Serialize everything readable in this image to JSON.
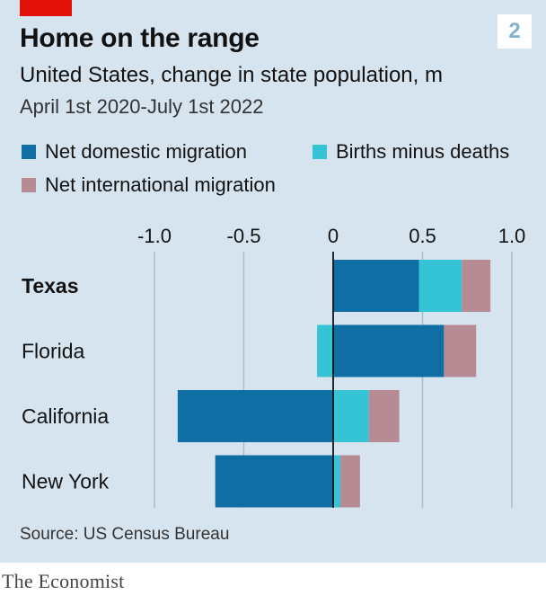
{
  "title": "Home on the range",
  "subtitle": "United States, change in state population, m",
  "period": "April 1st 2020-July 1st 2022",
  "badge": "2",
  "source": "Source: US Census Bureau",
  "brand": "The Economist",
  "colors": {
    "domestic": "#0f6ea3",
    "births": "#35c3d6",
    "international": "#b68b94",
    "accent": "#e3120b",
    "background": "#d6e4ef"
  },
  "legend": [
    {
      "label": "Net domestic migration",
      "color": "#0f6ea3"
    },
    {
      "label": "Births minus deaths",
      "color": "#35c3d6"
    },
    {
      "label": "Net international migration",
      "color": "#b68b94"
    }
  ],
  "chart_data": {
    "type": "bar",
    "orientation": "horizontal",
    "stacked": true,
    "categories": [
      "Texas",
      "Florida",
      "California",
      "New York"
    ],
    "highlight": "Texas",
    "series": [
      {
        "name": "Net domestic migration",
        "values": [
          0.48,
          0.62,
          -0.87,
          -0.66
        ]
      },
      {
        "name": "Births minus deaths",
        "values": [
          0.24,
          -0.09,
          0.2,
          0.04
        ]
      },
      {
        "name": "Net international migration",
        "values": [
          0.16,
          0.18,
          0.17,
          0.11
        ]
      }
    ],
    "xticks": [
      "-1.0",
      "-0.5",
      "0",
      "0.5",
      "1.0"
    ],
    "xlim": [
      -1.0,
      1.0
    ],
    "grid": true,
    "legend_position": "top"
  }
}
